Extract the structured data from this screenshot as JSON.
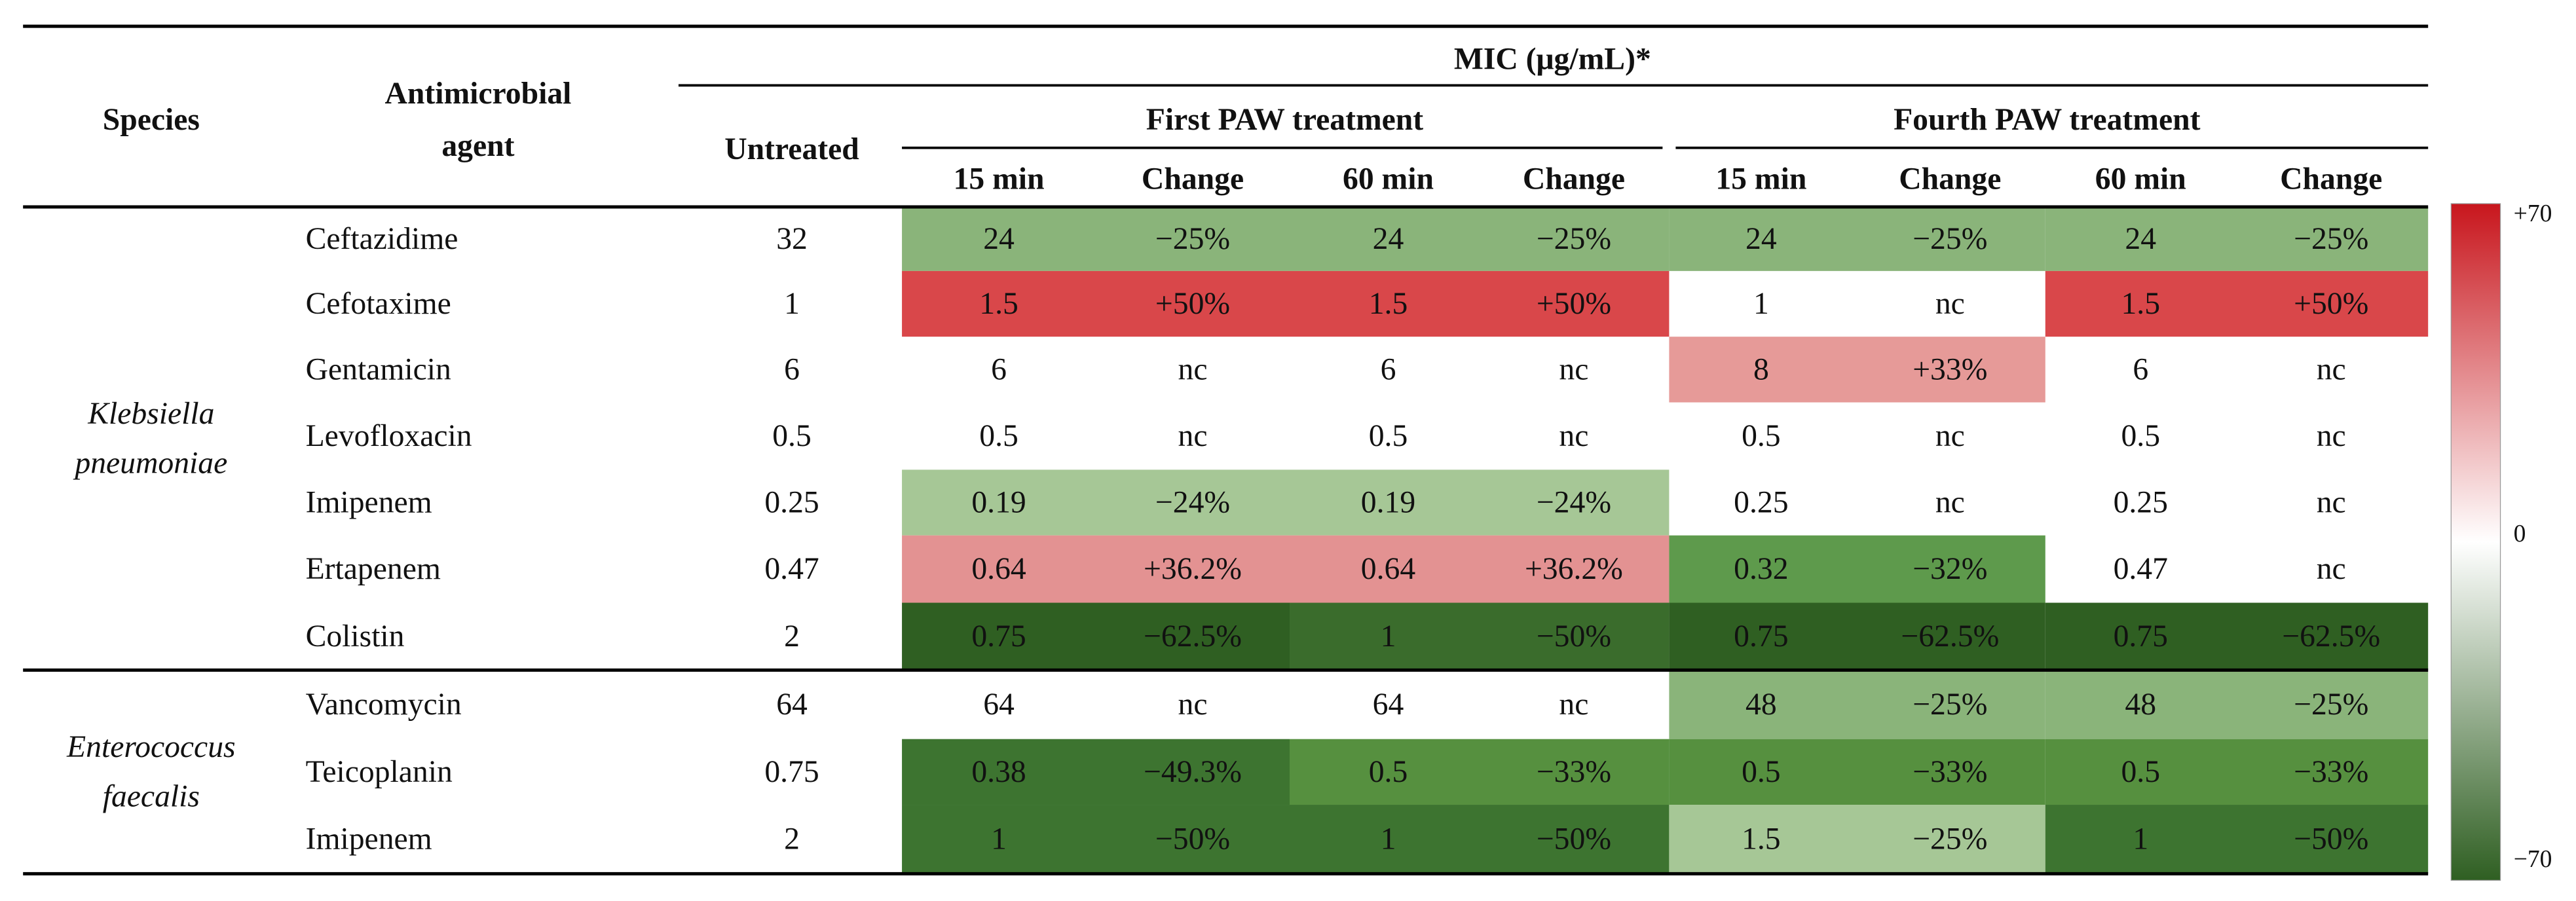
{
  "table": {
    "header": {
      "species": "Species",
      "agent": [
        "Antimicrobial",
        "agent"
      ],
      "mic": "MIC (μg/mL)*",
      "untreated": "Untreated",
      "treatments": [
        "First PAW treatment",
        "Fourth PAW treatment"
      ],
      "subcols": [
        "15 min",
        "Change",
        "60 min",
        "Change",
        "15 min",
        "Change",
        "60 min",
        "Change"
      ]
    },
    "groups": [
      {
        "species": [
          "Klebsiella",
          "pneumoniae"
        ],
        "rows": [
          {
            "agent": "Ceftazidime",
            "untreated": "32",
            "cells": [
              "24",
              "−25%",
              "24",
              "−25%",
              "24",
              "−25%",
              "24",
              "−25%"
            ],
            "fills": [
              "#8ab47a",
              "#8ab47a",
              "#8ab47a",
              "#8ab47a"
            ]
          },
          {
            "agent": "Cefotaxime",
            "untreated": "1",
            "cells": [
              "1.5",
              "+50%",
              "1.5",
              "+50%",
              "1",
              "nc",
              "1.5",
              "+50%"
            ],
            "fills": [
              "#d9474a",
              "#d9474a",
              null,
              "#d9474a"
            ]
          },
          {
            "agent": "Gentamicin",
            "untreated": "6",
            "cells": [
              "6",
              "nc",
              "6",
              "nc",
              "8",
              "+33%",
              "6",
              "nc"
            ],
            "fills": [
              null,
              null,
              "#e69a98",
              null
            ]
          },
          {
            "agent": "Levofloxacin",
            "untreated": "0.5",
            "cells": [
              "0.5",
              "nc",
              "0.5",
              "nc",
              "0.5",
              "nc",
              "0.5",
              "nc"
            ],
            "fills": [
              null,
              null,
              null,
              null
            ]
          },
          {
            "agent": "Imipenem",
            "untreated": "0.25",
            "cells": [
              "0.19",
              "−24%",
              "0.19",
              "−24%",
              "0.25",
              "nc",
              "0.25",
              "nc"
            ],
            "fills": [
              "#a6c796",
              "#a6c796",
              null,
              null
            ]
          },
          {
            "agent": "Ertapenem",
            "untreated": "0.47",
            "cells": [
              "0.64",
              "+36.2%",
              "0.64",
              "+36.2%",
              "0.32",
              "−32%",
              "0.47",
              "nc"
            ],
            "fills": [
              "#e39292",
              "#e39292",
              "#5e9a4c",
              null
            ]
          },
          {
            "agent": "Colistin",
            "untreated": "2",
            "cells": [
              "0.75",
              "−62.5%",
              "1",
              "−50%",
              "0.75",
              "−62.5%",
              "0.75",
              "−62.5%"
            ],
            "fills": [
              "#2f5f22",
              "#3a6c2c",
              "#2f5f22",
              "#2f5f22"
            ]
          }
        ]
      },
      {
        "species": [
          "Enterococcus",
          "faecalis"
        ],
        "rows": [
          {
            "agent": "Vancomycin",
            "untreated": "64",
            "cells": [
              "64",
              "nc",
              "64",
              "nc",
              "48",
              "−25%",
              "48",
              "−25%"
            ],
            "fills": [
              null,
              null,
              "#8ab47a",
              "#8ab47a"
            ]
          },
          {
            "agent": "Teicoplanin",
            "untreated": "0.75",
            "cells": [
              "0.38",
              "−49.3%",
              "0.5",
              "−33%",
              "0.5",
              "−33%",
              "0.5",
              "−33%"
            ],
            "fills": [
              "#3d7430",
              "#56903f",
              "#56903f",
              "#56903f"
            ]
          },
          {
            "agent": "Imipenem",
            "untreated": "2",
            "cells": [
              "1",
              "−50%",
              "1",
              "−50%",
              "1.5",
              "−25%",
              "1",
              "−50%"
            ],
            "fills": [
              "#3d7430",
              "#3d7430",
              "#a6c796",
              "#3d7430"
            ]
          }
        ]
      }
    ],
    "legend": {
      "labels": [
        "+70",
        "0",
        "−70"
      ],
      "colors": [
        "#c8161d",
        "#ffffff",
        "#2f5f22"
      ]
    }
  }
}
